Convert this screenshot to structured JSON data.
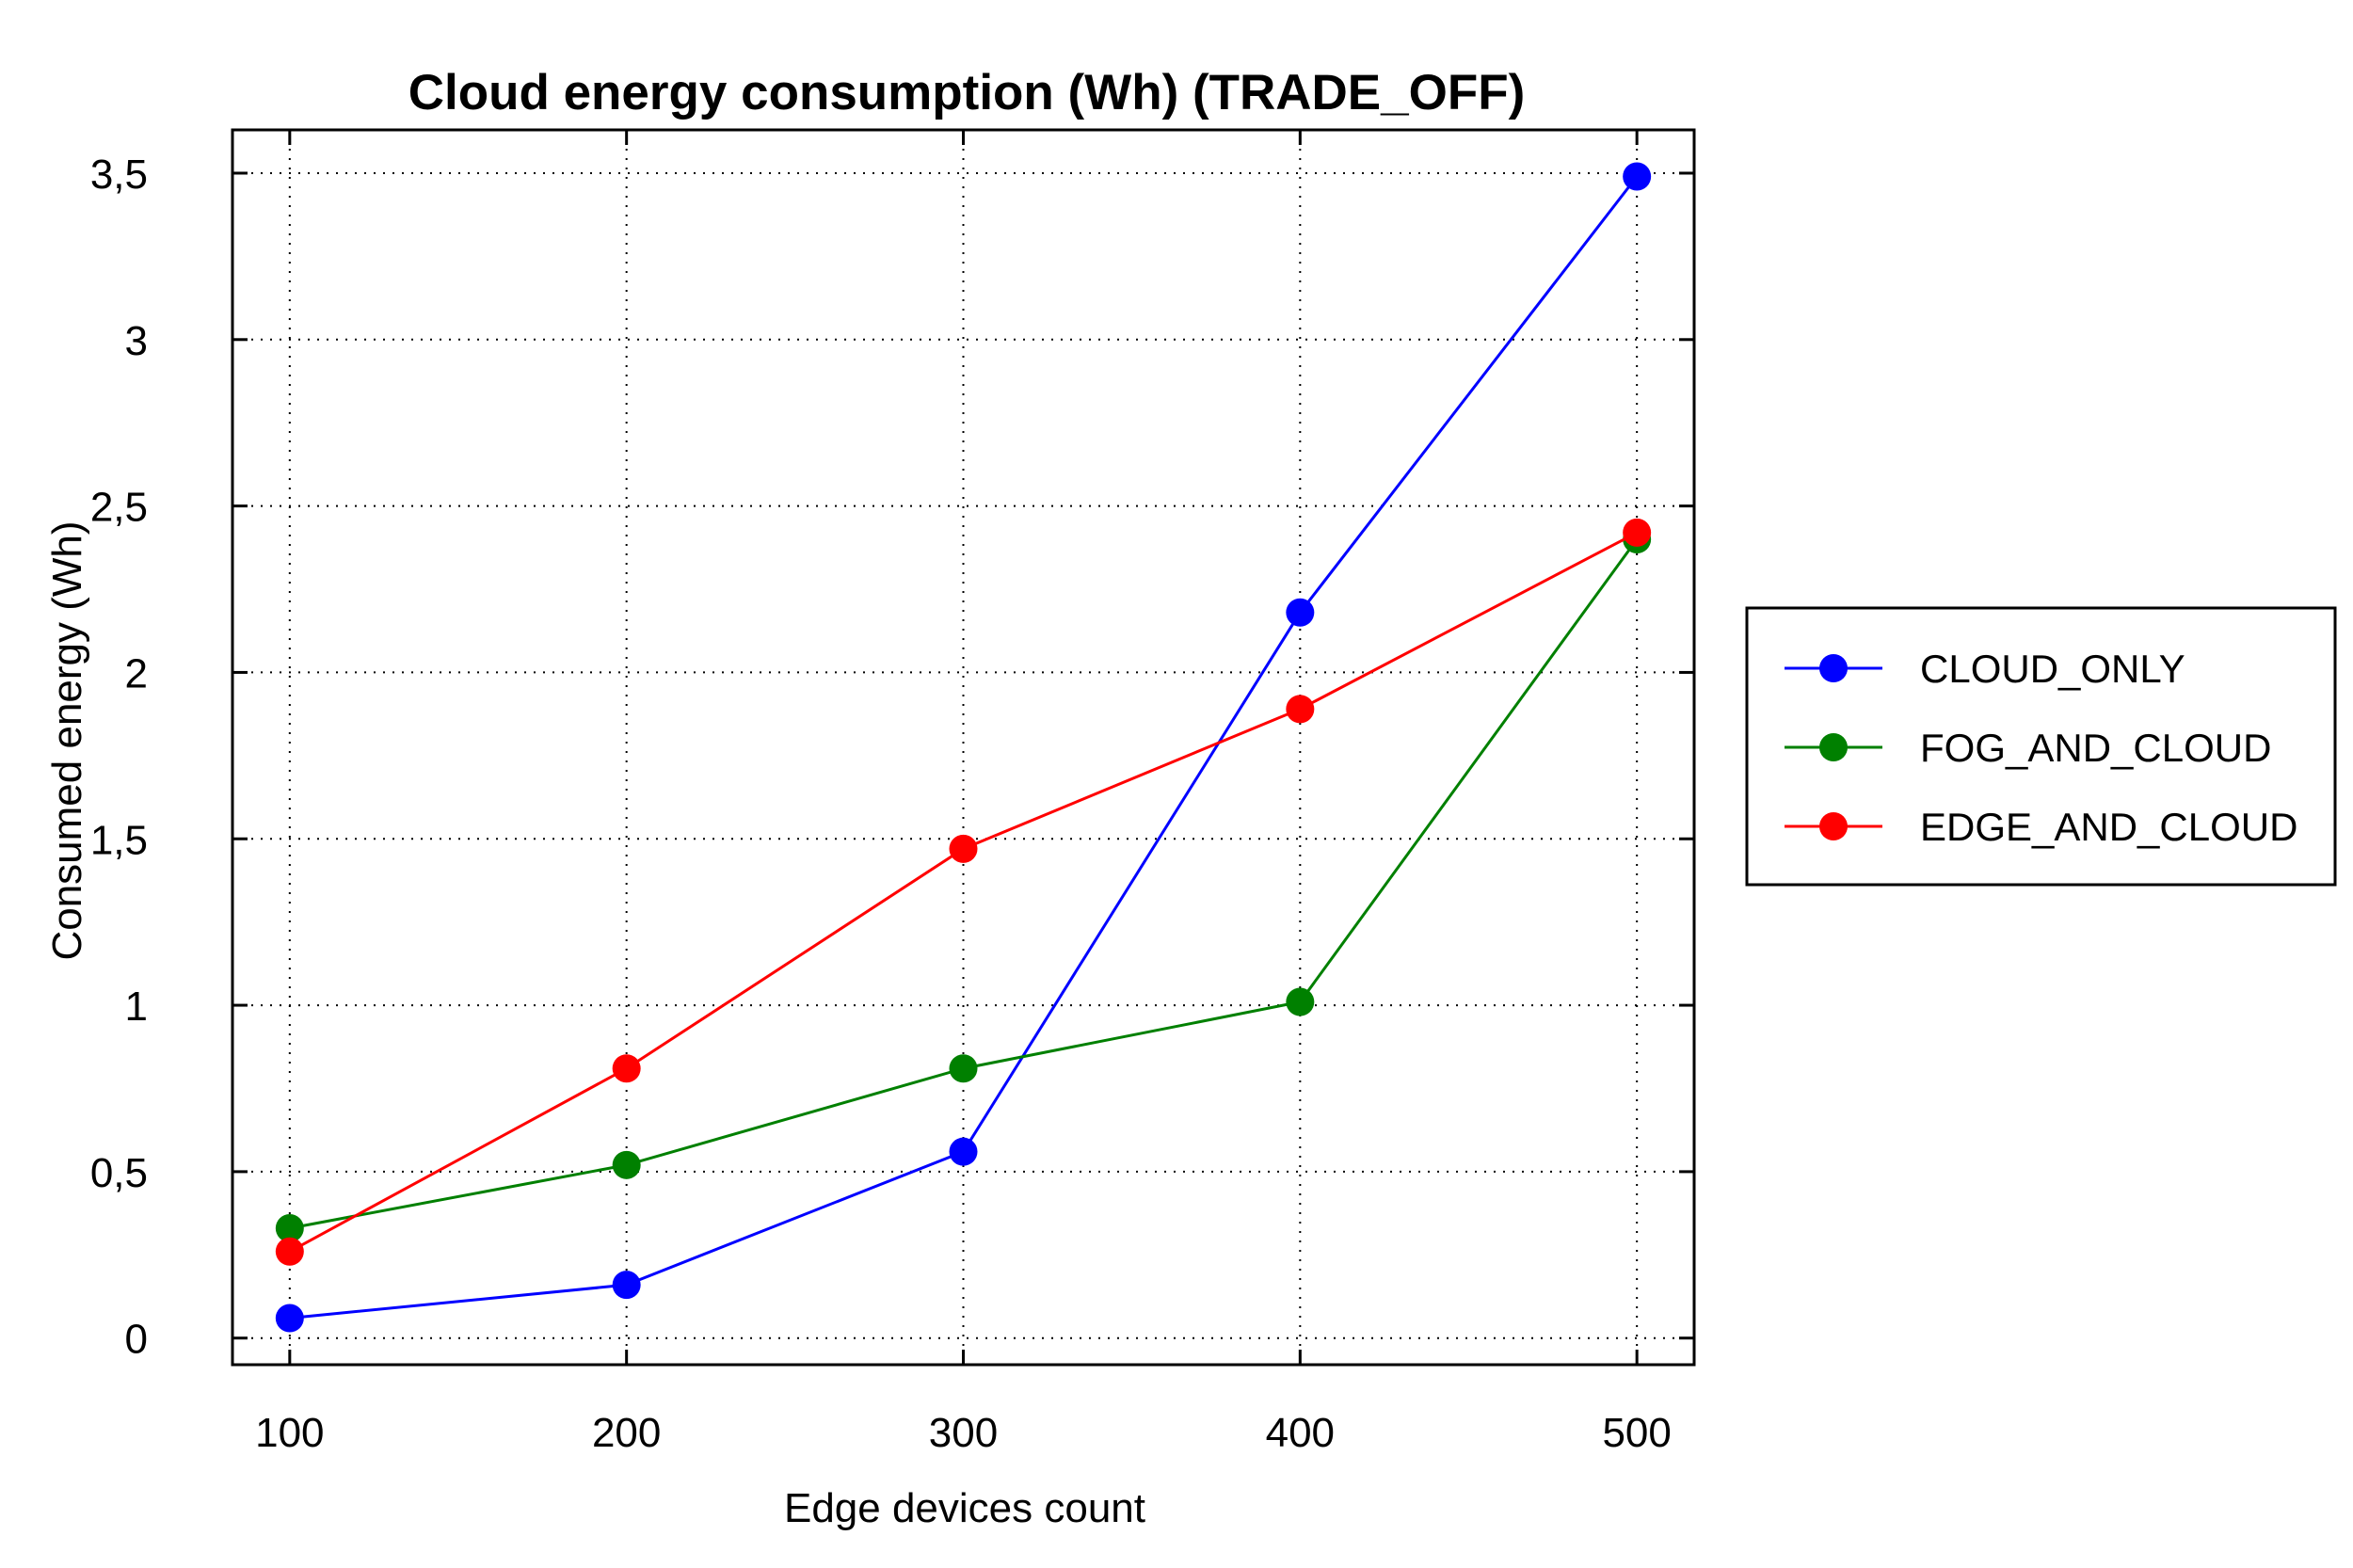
{
  "chart_data": {
    "type": "line",
    "title": "Cloud energy consumption (Wh) (TRADE_OFF)",
    "xlabel": "Edge devices count",
    "ylabel": "Consumed energy (Wh)",
    "x": [
      100,
      200,
      300,
      400,
      500
    ],
    "x_tick_labels": [
      "100",
      "200",
      "300",
      "400",
      "500"
    ],
    "xlim": [
      83,
      517
    ],
    "y_ticks": [
      0,
      0.5,
      1,
      1.5,
      2,
      2.5,
      3,
      3.5
    ],
    "y_tick_labels": [
      "0",
      "0,5",
      "1",
      "1,5",
      "2",
      "2,5",
      "3",
      "3,5"
    ],
    "ylim": [
      -0.08,
      3.63
    ],
    "grid": true,
    "legend_position": "right",
    "series": [
      {
        "name": "CLOUD_ONLY",
        "color": "#0000ff",
        "values": [
          0.06,
          0.16,
          0.56,
          2.18,
          3.49
        ]
      },
      {
        "name": "FOG_AND_CLOUD",
        "color": "#008000",
        "values": [
          0.33,
          0.52,
          0.81,
          1.01,
          2.4
        ]
      },
      {
        "name": "EDGE_AND_CLOUD",
        "color": "#ff0000",
        "values": [
          0.26,
          0.81,
          1.47,
          1.89,
          2.42
        ]
      }
    ]
  }
}
